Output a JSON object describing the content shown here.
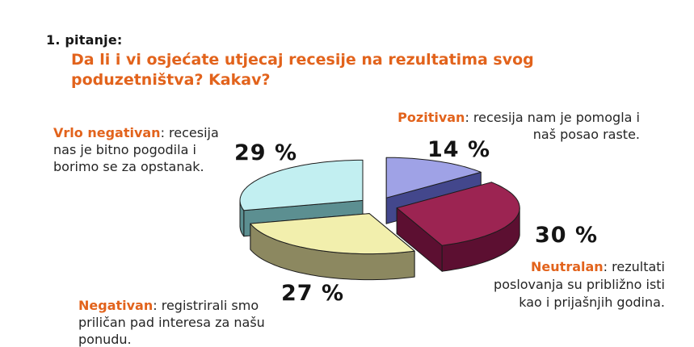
{
  "page": {
    "background": "#ffffff",
    "accent_color": "#e2631c"
  },
  "header": {
    "kicker": "1. pitanje:",
    "question": "Da li i vi osjećate utjecaj recesije na rezultatima svog\npoduzetništva? Kakav?"
  },
  "chart_data": {
    "type": "pie",
    "three_d": true,
    "exploded": true,
    "start_angle_deg": 90,
    "direction": "clockwise",
    "legend_position": "callouts-around-pie",
    "slices": [
      {
        "label": "Pozitivan",
        "value_pct": 14,
        "pct_label": "14 %",
        "desc_suffix": ": recesija nam je pomogla i\nnaš posao raste.",
        "top_color": "#9fa2e6",
        "side_color": "#43478c"
      },
      {
        "label": "Neutralan",
        "value_pct": 30,
        "pct_label": "30 %",
        "desc_suffix": ": rezultati\nposlovanja su približno isti\nkao i prijašnjih godina.",
        "top_color": "#9c2452",
        "side_color": "#5c0f31"
      },
      {
        "label": "Negativan",
        "value_pct": 27,
        "pct_label": "27 %",
        "desc_suffix": ": registrirali smo\npriličan pad interesa za našu\nponudu.",
        "top_color": "#f2efad",
        "side_color": "#8c8860"
      },
      {
        "label": "Vrlo negativan",
        "value_pct": 29,
        "pct_label": "29 %",
        "desc_suffix": ": recesija\nnas je bitno pogodila i\nborimo se za opstanak.",
        "top_color": "#c2eff1",
        "side_color": "#5c8f91"
      }
    ]
  }
}
